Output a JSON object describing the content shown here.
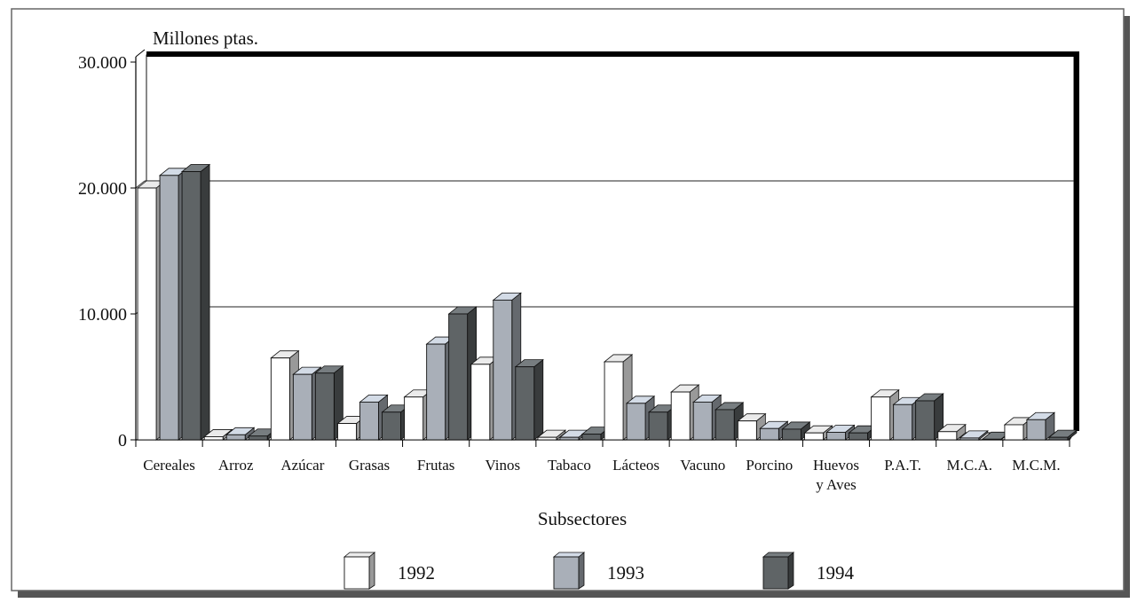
{
  "chart_data": {
    "type": "bar",
    "ylabel": "Millones ptas.",
    "xlabel": "Subsectores",
    "ylim": [
      0,
      30000
    ],
    "yticks": [
      0,
      10000,
      20000,
      30000
    ],
    "ytick_labels": [
      "0",
      "10.000",
      "20.000",
      "30.000"
    ],
    "categories": [
      "Cereales",
      "Arroz",
      "Azúcar",
      "Grasas",
      "Frutas",
      "Vinos",
      "Tabaco",
      "Lácteos",
      "Vacuno",
      "Porcino",
      "Huevos\ny Aves",
      "P.A.T.",
      "M.C.A.",
      "M.C.M."
    ],
    "series": [
      {
        "name": "1992",
        "color": "#ffffff",
        "values": [
          20000,
          250,
          6500,
          1300,
          3400,
          6000,
          200,
          6200,
          3800,
          1500,
          550,
          3400,
          650,
          1200
        ]
      },
      {
        "name": "1993",
        "color": "#a9afb8",
        "values": [
          21000,
          400,
          5200,
          3000,
          7600,
          11100,
          200,
          2900,
          3000,
          900,
          600,
          2800,
          150,
          1600
        ]
      },
      {
        "name": "1994",
        "color": "#5f6466",
        "values": [
          21300,
          300,
          5300,
          2200,
          10000,
          5800,
          450,
          2200,
          2400,
          850,
          550,
          3100,
          50,
          200
        ]
      }
    ],
    "legend_position": "bottom",
    "grid": true
  }
}
